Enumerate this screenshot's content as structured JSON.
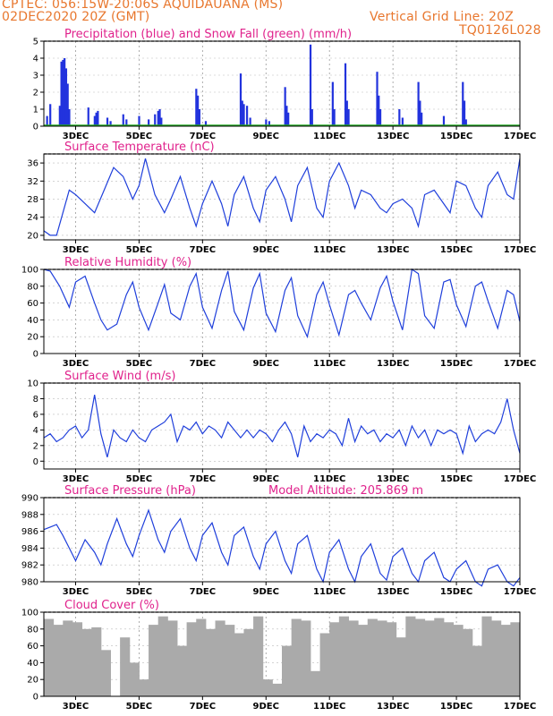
{
  "header": {
    "line1_left": "CPTEC:   056:15W-20:06S   AQUIDAUANA (MS)",
    "line2_left": "02DEC2020 20Z (GMT)",
    "line2_right": "Vertical Grid Line: 20Z",
    "line3_right": "TQ0126L028"
  },
  "x_axis": {
    "tick_labels": [
      "3DEC",
      "5DEC",
      "7DEC",
      "9DEC",
      "11DEC",
      "13DEC",
      "15DEC",
      "17DEC"
    ],
    "tick_days": [
      3,
      5,
      7,
      9,
      11,
      13,
      15,
      17
    ],
    "start_day": 2.0,
    "end_day": 17.0
  },
  "colors": {
    "line": "#1f3fdb",
    "bar": "#2233dd",
    "snow": "#22aa22",
    "cloud": "#aaaaaa",
    "title": "#e0228c",
    "header": "#e8772e"
  },
  "chart_data": [
    {
      "type": "bar",
      "title": "Precipitation (blue) and Snow Fall (green) (mm/h)",
      "ylim": [
        0,
        5
      ],
      "yticks": [
        0,
        1,
        2,
        3,
        4,
        5
      ],
      "x_days": [
        2.1,
        2.2,
        2.5,
        2.55,
        2.6,
        2.65,
        2.7,
        2.75,
        2.8,
        3.4,
        3.6,
        3.65,
        3.7,
        4.0,
        4.1,
        4.5,
        4.6,
        5.0,
        5.3,
        5.5,
        5.6,
        5.65,
        5.7,
        6.8,
        6.85,
        6.9,
        7.1,
        8.2,
        8.25,
        8.3,
        8.4,
        8.5,
        9.0,
        9.1,
        9.6,
        9.65,
        9.7,
        10.4,
        10.45,
        11.1,
        11.15,
        11.5,
        11.55,
        11.6,
        12.5,
        12.55,
        12.6,
        13.2,
        13.3,
        13.8,
        13.85,
        13.9,
        14.6,
        15.2,
        15.25,
        15.3
      ],
      "values": [
        0.6,
        1.3,
        1.2,
        3.8,
        3.9,
        4.0,
        3.4,
        2.5,
        1.0,
        1.1,
        0.6,
        0.8,
        0.9,
        0.5,
        0.3,
        0.7,
        0.4,
        0.6,
        0.4,
        0.7,
        0.9,
        1.0,
        0.5,
        2.2,
        1.8,
        1.0,
        0.3,
        3.1,
        1.5,
        1.3,
        1.2,
        0.5,
        0.4,
        0.3,
        2.3,
        1.2,
        0.8,
        4.8,
        1.0,
        2.6,
        1.0,
        3.7,
        1.5,
        1.0,
        3.2,
        1.8,
        1.0,
        1.0,
        0.5,
        2.6,
        1.5,
        0.8,
        0.6,
        2.6,
        1.5,
        0.4
      ],
      "snow_values": [
        0,
        0,
        0,
        0,
        0,
        0,
        0,
        0,
        0,
        0,
        0,
        0,
        0,
        0,
        0,
        0,
        0,
        0,
        0,
        0,
        0,
        0,
        0,
        0,
        0,
        0,
        0,
        0,
        0,
        0,
        0,
        0,
        0,
        0,
        0,
        0,
        0,
        0,
        0,
        0,
        0,
        0,
        0,
        0,
        0,
        0,
        0,
        0,
        0,
        0,
        0,
        0,
        0,
        0,
        0,
        0
      ]
    },
    {
      "type": "line",
      "title": "Surface Temperature (nC)",
      "ylim": [
        19,
        38
      ],
      "yticks": [
        20,
        24,
        28,
        32,
        36
      ],
      "x_days": [
        2.0,
        2.2,
        2.4,
        2.6,
        2.8,
        3.0,
        3.3,
        3.6,
        3.9,
        4.2,
        4.5,
        4.8,
        5.0,
        5.2,
        5.5,
        5.8,
        6.0,
        6.3,
        6.6,
        6.8,
        7.0,
        7.3,
        7.6,
        7.8,
        8.0,
        8.3,
        8.6,
        8.8,
        9.0,
        9.3,
        9.6,
        9.8,
        10.0,
        10.3,
        10.6,
        10.8,
        11.0,
        11.3,
        11.6,
        11.8,
        12.0,
        12.3,
        12.6,
        12.8,
        13.0,
        13.3,
        13.6,
        13.8,
        14.0,
        14.3,
        14.6,
        14.8,
        15.0,
        15.3,
        15.6,
        15.8,
        16.0,
        16.3,
        16.6,
        16.8,
        17.0
      ],
      "values": [
        21,
        20,
        20,
        25,
        30,
        29,
        27,
        25,
        30,
        35,
        33,
        28,
        31,
        37,
        29,
        25,
        28,
        33,
        26,
        22,
        27,
        32,
        27,
        22,
        29,
        33,
        26,
        23,
        30,
        33,
        28,
        23,
        31,
        35,
        26,
        24,
        32,
        36,
        31,
        26,
        30,
        29,
        26,
        25,
        27,
        28,
        26,
        22,
        29,
        30,
        27,
        25,
        32,
        31,
        26,
        24,
        31,
        34,
        29,
        28,
        37
      ]
    },
    {
      "type": "line",
      "title": "Relative Humidity (%)",
      "ylim": [
        0,
        100
      ],
      "yticks": [
        0,
        20,
        40,
        60,
        80,
        100
      ],
      "x_days": [
        2.0,
        2.2,
        2.5,
        2.8,
        3.0,
        3.3,
        3.6,
        3.8,
        4.0,
        4.3,
        4.6,
        4.8,
        5.0,
        5.3,
        5.6,
        5.8,
        6.0,
        6.3,
        6.6,
        6.8,
        7.0,
        7.3,
        7.6,
        7.8,
        8.0,
        8.3,
        8.6,
        8.8,
        9.0,
        9.3,
        9.6,
        9.8,
        10.0,
        10.3,
        10.6,
        10.8,
        11.0,
        11.3,
        11.6,
        11.8,
        12.0,
        12.3,
        12.6,
        12.8,
        13.0,
        13.3,
        13.6,
        13.8,
        14.0,
        14.3,
        14.6,
        14.8,
        15.0,
        15.3,
        15.6,
        15.8,
        16.0,
        16.3,
        16.6,
        16.8,
        17.0
      ],
      "values": [
        100,
        98,
        80,
        55,
        85,
        92,
        60,
        40,
        28,
        35,
        70,
        85,
        55,
        28,
        60,
        82,
        48,
        40,
        80,
        95,
        55,
        30,
        75,
        98,
        50,
        28,
        78,
        95,
        48,
        26,
        75,
        90,
        45,
        20,
        70,
        85,
        58,
        22,
        70,
        75,
        60,
        40,
        78,
        92,
        62,
        28,
        100,
        95,
        45,
        30,
        85,
        88,
        58,
        32,
        80,
        85,
        62,
        30,
        75,
        70,
        38
      ]
    },
    {
      "type": "line",
      "title": "Surface Wind (m/s)",
      "ylim": [
        -1,
        10
      ],
      "yticks": [
        0,
        2,
        4,
        6,
        8,
        10
      ],
      "x_days": [
        2.0,
        2.2,
        2.4,
        2.6,
        2.8,
        3.0,
        3.2,
        3.4,
        3.6,
        3.8,
        4.0,
        4.2,
        4.4,
        4.6,
        4.8,
        5.0,
        5.2,
        5.4,
        5.6,
        5.8,
        6.0,
        6.2,
        6.4,
        6.6,
        6.8,
        7.0,
        7.2,
        7.4,
        7.6,
        7.8,
        8.0,
        8.2,
        8.4,
        8.6,
        8.8,
        9.0,
        9.2,
        9.4,
        9.6,
        9.8,
        10.0,
        10.2,
        10.4,
        10.6,
        10.8,
        11.0,
        11.2,
        11.4,
        11.6,
        11.8,
        12.0,
        12.2,
        12.4,
        12.6,
        12.8,
        13.0,
        13.2,
        13.4,
        13.6,
        13.8,
        14.0,
        14.2,
        14.4,
        14.6,
        14.8,
        15.0,
        15.2,
        15.4,
        15.6,
        15.8,
        16.0,
        16.2,
        16.4,
        16.6,
        16.8,
        17.0
      ],
      "values": [
        3,
        3.5,
        2.5,
        3,
        4,
        4.5,
        3,
        4,
        8.5,
        3.5,
        0.5,
        4,
        3,
        2.5,
        4,
        3,
        2.5,
        4,
        4.5,
        5,
        6,
        2.5,
        4.5,
        4,
        5,
        3.5,
        4.5,
        4,
        3,
        5,
        4,
        3,
        4,
        3,
        4,
        3.5,
        2.5,
        4,
        5,
        3.5,
        0.5,
        4.5,
        2.5,
        3.5,
        3,
        4,
        3.5,
        2,
        5.5,
        2.5,
        4.5,
        3.5,
        4,
        2.5,
        3.5,
        3,
        4,
        2,
        4.5,
        3,
        4,
        2,
        4,
        3.5,
        4,
        3.5,
        1,
        4.5,
        2.5,
        3.5,
        4,
        3.5,
        5,
        8,
        4,
        1
      ]
    },
    {
      "type": "line",
      "title": "Surface Pressure (hPa)",
      "subtitle": "Model Altitude: 205.869  m",
      "ylim": [
        980,
        990
      ],
      "yticks": [
        980,
        982,
        984,
        986,
        988,
        990
      ],
      "x_days": [
        2.0,
        2.2,
        2.4,
        2.6,
        2.8,
        3.0,
        3.3,
        3.6,
        3.8,
        4.0,
        4.3,
        4.6,
        4.8,
        5.0,
        5.3,
        5.6,
        5.8,
        6.0,
        6.3,
        6.6,
        6.8,
        7.0,
        7.3,
        7.6,
        7.8,
        8.0,
        8.3,
        8.6,
        8.8,
        9.0,
        9.3,
        9.6,
        9.8,
        10.0,
        10.3,
        10.6,
        10.8,
        11.0,
        11.3,
        11.6,
        11.8,
        12.0,
        12.3,
        12.6,
        12.8,
        13.0,
        13.3,
        13.6,
        13.8,
        14.0,
        14.3,
        14.6,
        14.8,
        15.0,
        15.3,
        15.6,
        15.8,
        16.0,
        16.3,
        16.6,
        16.8,
        17.0
      ],
      "values": [
        986.2,
        986.5,
        986.8,
        985.5,
        984.0,
        982.5,
        985.0,
        983.5,
        982.0,
        984.5,
        987.5,
        984.5,
        983.0,
        985.5,
        988.5,
        985.0,
        983.5,
        986.0,
        987.5,
        984.0,
        982.5,
        985.5,
        987.0,
        983.5,
        982.0,
        985.5,
        986.5,
        983.0,
        981.5,
        984.5,
        986.0,
        982.5,
        981.0,
        984.5,
        985.5,
        981.5,
        980.0,
        983.5,
        985.0,
        981.5,
        980.0,
        983.0,
        984.5,
        981.0,
        980.2,
        983.0,
        984.0,
        981.0,
        980.0,
        982.5,
        983.5,
        980.5,
        980.0,
        981.5,
        982.5,
        980.0,
        979.5,
        981.5,
        982.0,
        980.0,
        979.5,
        980.5
      ]
    },
    {
      "type": "bar",
      "title": "Cloud Cover (%)",
      "ylim": [
        0,
        100
      ],
      "yticks": [
        0,
        20,
        40,
        60,
        80,
        100
      ],
      "x_days": [
        2.0,
        2.3,
        2.6,
        2.9,
        3.2,
        3.5,
        3.8,
        4.1,
        4.4,
        4.7,
        5.0,
        5.3,
        5.6,
        5.9,
        6.2,
        6.5,
        6.8,
        7.1,
        7.4,
        7.7,
        8.0,
        8.3,
        8.6,
        8.9,
        9.2,
        9.5,
        9.8,
        10.1,
        10.4,
        10.7,
        11.0,
        11.3,
        11.6,
        11.9,
        12.2,
        12.5,
        12.8,
        13.1,
        13.4,
        13.7,
        14.0,
        14.3,
        14.6,
        14.9,
        15.2,
        15.5,
        15.8,
        16.1,
        16.4,
        16.7
      ],
      "values": [
        92,
        85,
        90,
        88,
        80,
        82,
        55,
        0,
        70,
        40,
        20,
        85,
        95,
        90,
        60,
        88,
        92,
        80,
        90,
        85,
        75,
        80,
        95,
        20,
        15,
        60,
        92,
        90,
        30,
        75,
        88,
        95,
        90,
        85,
        92,
        90,
        88,
        70,
        95,
        92,
        90,
        93,
        88,
        85,
        80,
        60,
        95,
        90,
        85,
        88
      ]
    }
  ]
}
